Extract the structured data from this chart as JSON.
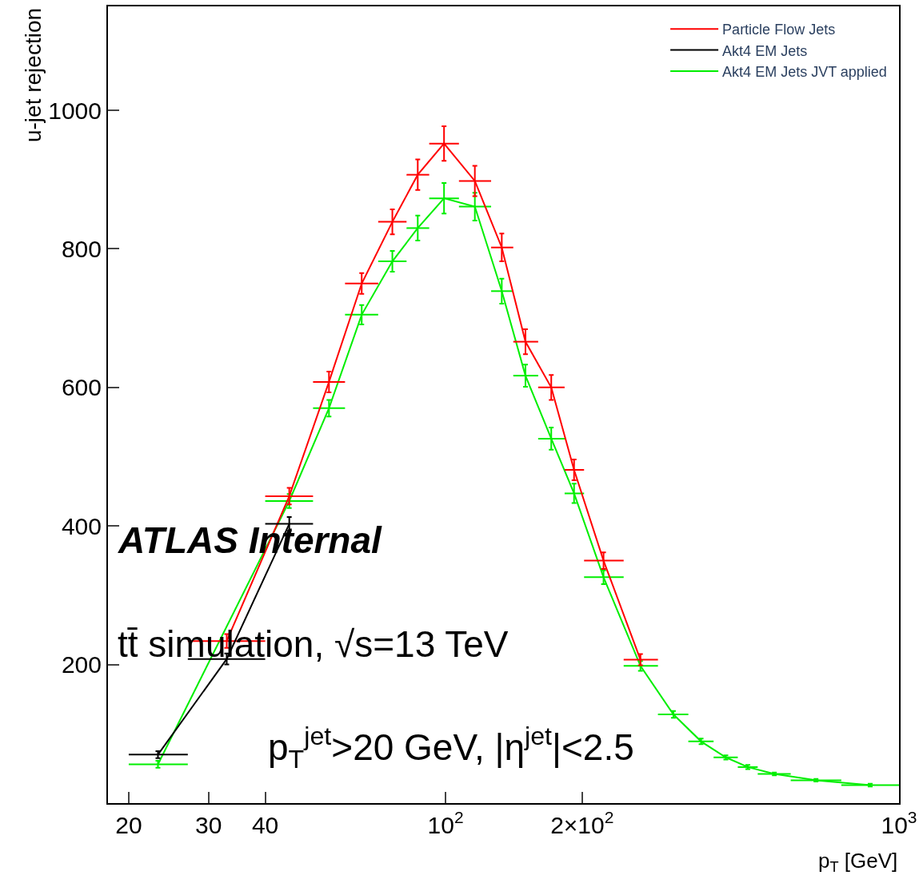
{
  "chart_data": {
    "type": "line",
    "xlabel": "p$_{T}$ [GeV]",
    "ylabel": "u-jet rejection",
    "x": [
      23.2,
      32.9,
      45.2,
      55.3,
      65.3,
      76.3,
      86.8,
      99.2,
      116,
      133,
      150,
      171,
      192,
      223,
      269,
      318,
      366,
      415,
      464,
      531,
      656,
      864
    ],
    "series": [
      {
        "name": "Particle Flow Jets",
        "color": "#ff0000",
        "values": [
          null,
          234,
          443,
          608,
          750,
          839,
          907,
          952,
          898,
          802,
          666,
          600,
          481,
          350,
          207,
          null,
          null,
          null,
          null,
          null,
          null,
          null
        ],
        "errors": [
          null,
          10,
          12,
          15,
          15,
          18,
          22,
          25,
          22,
          20,
          18,
          18,
          15,
          12,
          8,
          null,
          null,
          null,
          null,
          null,
          null,
          null
        ],
        "xerrors": [
          null,
          [
            27,
            40
          ],
          [
            40,
            51
          ],
          [
            51,
            60
          ],
          [
            60,
            71
          ],
          [
            71,
            82
          ],
          [
            82,
            92
          ],
          [
            92,
            107
          ],
          [
            107,
            126
          ],
          [
            126,
            141
          ],
          [
            141,
            160
          ],
          [
            160,
            183
          ],
          [
            183,
            202
          ],
          [
            202,
            247
          ],
          [
            247,
            294
          ],
          null,
          null,
          null,
          null,
          null,
          null,
          null
        ]
      },
      {
        "name": "Akt4 EM Jets",
        "color": "#000000",
        "values": [
          70,
          208,
          403,
          null,
          null,
          null,
          null,
          null,
          null,
          null,
          null,
          null,
          null,
          null,
          null,
          null,
          null,
          null,
          null,
          null,
          null,
          null
        ],
        "errors": [
          5,
          8,
          10,
          null,
          null,
          null,
          null,
          null,
          null,
          null,
          null,
          null,
          null,
          null,
          null,
          null,
          null,
          null,
          null,
          null,
          null,
          null
        ],
        "xerrors": [
          [
            20,
            27
          ],
          [
            27,
            40
          ],
          [
            40,
            51
          ],
          null,
          null,
          null,
          null,
          null,
          null,
          null,
          null,
          null,
          null,
          null,
          null,
          null,
          null,
          null,
          null,
          null,
          null,
          null
        ]
      },
      {
        "name": "Akt4 EM Jets JVT applied",
        "color": "#00ee00",
        "values": [
          56,
          null,
          436,
          570,
          705,
          782,
          830,
          873,
          861,
          739,
          617,
          526,
          447,
          326,
          198,
          128,
          89,
          66,
          52,
          42,
          33,
          26
        ],
        "errors": [
          5,
          null,
          10,
          12,
          14,
          15,
          18,
          22,
          20,
          18,
          16,
          16,
          14,
          10,
          7,
          5,
          4,
          3,
          3,
          2,
          2,
          2
        ],
        "xerrors": [
          [
            20,
            27
          ],
          null,
          [
            40,
            51
          ],
          [
            51,
            60
          ],
          [
            60,
            71
          ],
          [
            71,
            82
          ],
          [
            82,
            92
          ],
          [
            92,
            107
          ],
          [
            107,
            126
          ],
          [
            126,
            141
          ],
          [
            141,
            160
          ],
          [
            160,
            183
          ],
          [
            183,
            202
          ],
          [
            202,
            247
          ],
          [
            247,
            294
          ],
          [
            294,
            343
          ],
          [
            343,
            390
          ],
          [
            390,
            441
          ],
          [
            441,
            488
          ],
          [
            488,
            577
          ],
          [
            577,
            746
          ],
          [
            746,
            1000
          ]
        ]
      }
    ],
    "log": "x",
    "xlim": [
      18,
      1000
    ],
    "ylim": [
      0,
      1150
    ],
    "xticks": [
      20,
      30,
      40,
      {
        "value": 100,
        "label": "10$^{2}$"
      },
      {
        "value": 200,
        "label": "2×10$^{2}$"
      },
      {
        "value": 1000,
        "label": "10$^{3}$"
      }
    ],
    "yticks": [
      200,
      400,
      600,
      800,
      1000
    ],
    "legend": "top right",
    "marker": "none",
    "line_style": "solid",
    "annotations": [
      "ATLAS Internal",
      "tt̄ simulation, √s=13 TeV",
      "p$_{T}$$^{jet}$>20 GeV, |η$^{jet}$|<2.5"
    ]
  }
}
